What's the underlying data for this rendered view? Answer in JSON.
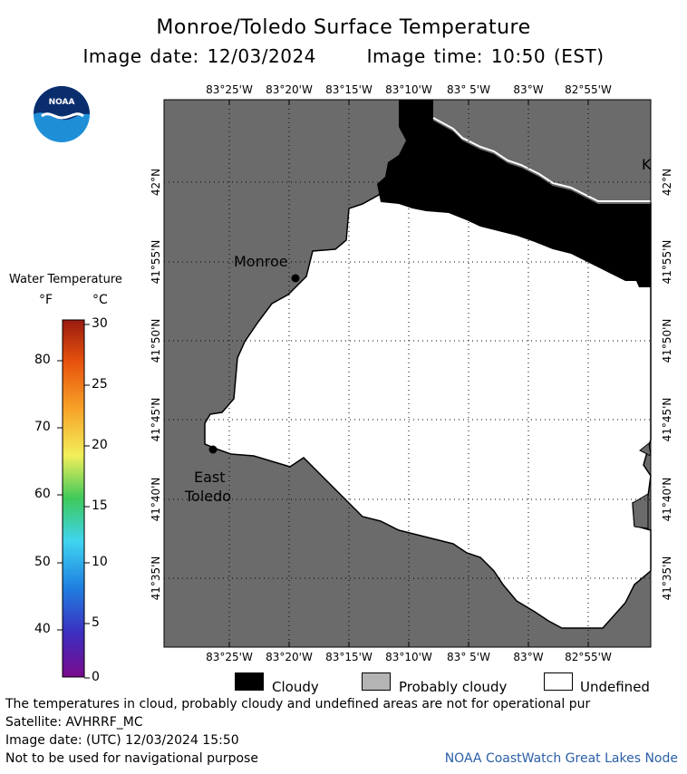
{
  "header": {
    "title": "Monroe/Toledo Surface Temperature",
    "image_date": "Image date: 12/03/2024",
    "image_time": "Image time: 10:50 (EST)"
  },
  "logo": {
    "text": "NOAA",
    "icon": "noaa-logo-icon"
  },
  "colorbar": {
    "title": "Water Temperature",
    "unit_f": "°F",
    "unit_c": "°C",
    "f_ticks": [
      "80",
      "70",
      "60",
      "50",
      "40"
    ],
    "c_ticks": [
      "30",
      "25",
      "20",
      "15",
      "10",
      "5",
      "0"
    ]
  },
  "map": {
    "lon_labels": [
      "83°25'W",
      "83°20'W",
      "83°15'W",
      "83°10'W",
      "83° 5'W",
      "83°W",
      "82°55'W"
    ],
    "lat_labels": [
      "42°N",
      "41°55'N",
      "41°50'N",
      "41°45'N",
      "41°40'N",
      "41°35'N"
    ],
    "places": {
      "monroe": "Monroe",
      "east_toledo_1": "East",
      "east_toledo_2": "Toledo",
      "corner_k": "K"
    },
    "colors": {
      "land": "#6b6b6b",
      "cloud": "#000000",
      "undefined": "#ffffff"
    }
  },
  "legend": {
    "cloudy": "Cloudy",
    "probably_cloudy": "Probably cloudy",
    "undefined": "Undefined"
  },
  "footer": {
    "note": "The temperatures in cloud, probably cloudy and undefined areas are not for operational pur",
    "satellite": "Satellite: AVHRRF_MC",
    "utc_date": "Image date: (UTC) 12/03/2024  15:50",
    "nav_warning": "Not to be used for navigational purpose",
    "credit": "NOAA CoastWatch Great Lakes Node"
  }
}
